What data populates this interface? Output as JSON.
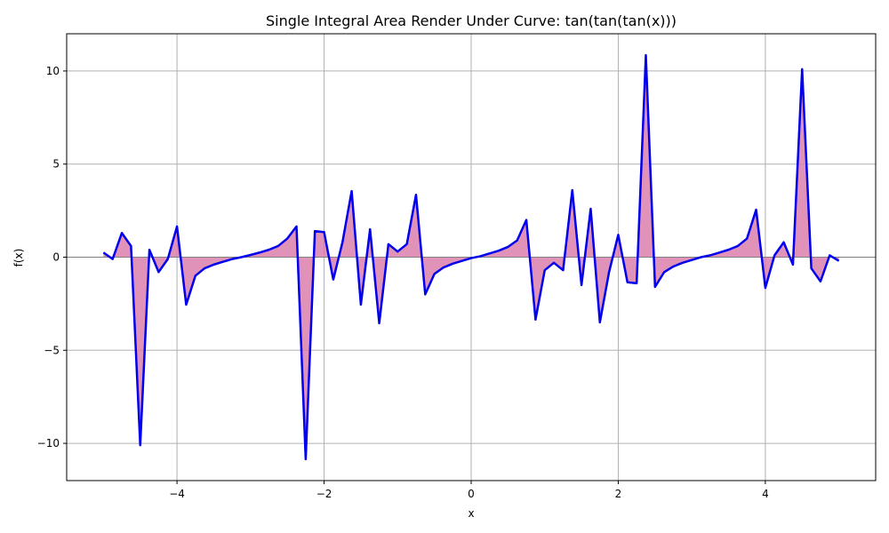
{
  "chart_data": {
    "type": "area",
    "title": "Single Integral Area Render Under Curve: tan(tan(tan(x)))",
    "xlabel": "x",
    "ylabel": "f(x)",
    "xlim": [
      -5.5,
      5.5
    ],
    "ylim": [
      -12,
      12
    ],
    "grid": true,
    "xticks": [
      -4,
      -2,
      0,
      2,
      4
    ],
    "xtick_labels": [
      "−4",
      "−2",
      "0",
      "2",
      "4"
    ],
    "yticks": [
      -10,
      -5,
      0,
      5,
      10
    ],
    "ytick_labels": [
      "−10",
      "−5",
      "0",
      "5",
      "10"
    ],
    "colors": {
      "line": "#0000ee",
      "fill": "#db7fac",
      "baseline": "#808080",
      "grid": "#b0b0b0"
    },
    "series": [
      {
        "x": [
          -5.0,
          -4.875,
          -4.75,
          -4.625,
          -4.5,
          -4.375,
          -4.25,
          -4.125,
          -4.0,
          -3.875,
          -3.75,
          -3.625,
          -3.5,
          -3.375,
          -3.25,
          -3.125,
          -3.0,
          -2.875,
          -2.75,
          -2.625,
          -2.5,
          -2.375,
          -2.25,
          -2.125,
          -2.0,
          -1.875,
          -1.75,
          -1.625,
          -1.5,
          -1.375,
          -1.25,
          -1.125,
          -1.0,
          -0.875,
          -0.75,
          -0.625,
          -0.5,
          -0.375,
          -0.25,
          -0.125,
          0.0,
          0.125,
          0.25,
          0.375,
          0.5,
          0.625,
          0.75,
          0.875,
          1.0,
          1.125,
          1.25,
          1.375,
          1.5,
          1.625,
          1.75,
          1.875,
          2.0,
          2.125,
          2.25,
          2.375,
          2.5,
          2.625,
          2.75,
          2.875,
          3.0,
          3.125,
          3.25,
          3.375,
          3.5,
          3.625,
          3.75,
          3.875,
          4.0,
          4.125,
          4.25,
          4.375,
          4.5,
          4.625,
          4.75,
          4.875,
          5.0
        ],
        "y": [
          0.25,
          -0.1,
          1.3,
          0.6,
          -10.1,
          0.4,
          -0.8,
          -0.1,
          1.65,
          -2.55,
          -1.0,
          -0.6,
          -0.4,
          -0.25,
          -0.1,
          0.0,
          0.12,
          0.25,
          0.4,
          0.6,
          1.0,
          1.65,
          -10.85,
          1.4,
          1.35,
          -1.2,
          0.8,
          3.55,
          -2.55,
          1.5,
          -3.55,
          0.7,
          0.3,
          0.7,
          3.35,
          -2.0,
          -0.9,
          -0.55,
          -0.35,
          -0.2,
          -0.05,
          0.05,
          0.2,
          0.35,
          0.55,
          0.9,
          2.0,
          -3.35,
          -0.7,
          -0.3,
          -0.7,
          3.6,
          -1.5,
          2.6,
          -3.5,
          -0.8,
          1.2,
          -1.35,
          -1.4,
          10.85,
          -1.6,
          -0.8,
          -0.5,
          -0.3,
          -0.15,
          0.0,
          0.1,
          0.25,
          0.4,
          0.6,
          1.0,
          2.55,
          -1.65,
          0.1,
          0.8,
          -0.4,
          10.1,
          -0.6,
          -1.3,
          0.1,
          -0.2
        ]
      }
    ]
  }
}
